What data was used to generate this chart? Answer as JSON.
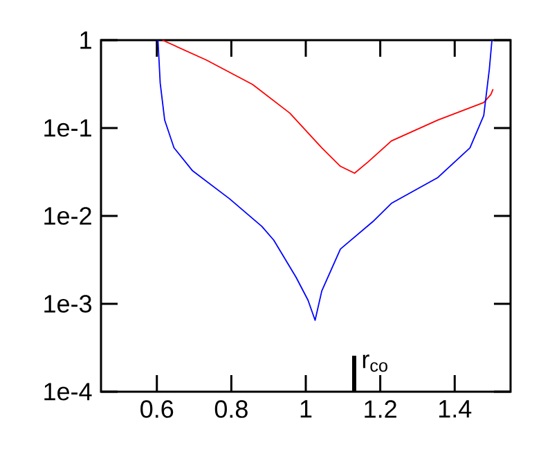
{
  "chart_data": {
    "type": "line",
    "log": "y",
    "xlim": [
      0.45,
      1.55
    ],
    "ylim": [
      0.0001,
      1
    ],
    "xticks": [
      0.6,
      0.8,
      1,
      1.2,
      1.4
    ],
    "yticks": [
      {
        "value": 0.0001,
        "label": "1e-4"
      },
      {
        "value": 0.001,
        "label": "1e-3"
      },
      {
        "value": 0.01,
        "label": "1e-2"
      },
      {
        "value": 0.1,
        "label": "1e-1"
      },
      {
        "value": 1,
        "label": "1"
      }
    ],
    "series": [
      {
        "color": "#ff0000",
        "x": [
          0.615,
          0.733,
          0.857,
          0.957,
          1.043,
          1.093,
          1.131,
          1.168,
          1.23,
          1.354,
          1.478,
          1.497,
          1.503
        ],
        "values": [
          1,
          0.594,
          0.313,
          0.148,
          0.0596,
          0.0367,
          0.0306,
          0.0414,
          0.0713,
          0.123,
          0.195,
          0.24,
          0.277
        ]
      },
      {
        "color": "#0000ff",
        "x": [
          0.603,
          0.609,
          0.621,
          0.646,
          0.696,
          0.795,
          0.882,
          0.914,
          0.974,
          1.006,
          1.025,
          1.043,
          1.093,
          1.18,
          1.23,
          1.354,
          1.441,
          1.478,
          1.493,
          1.5
        ],
        "values": [
          1,
          0.324,
          0.123,
          0.0596,
          0.0326,
          0.0157,
          0.0076,
          0.0053,
          0.002,
          0.0011,
          0.00065,
          0.0014,
          0.0042,
          0.0086,
          0.0139,
          0.0272,
          0.0596,
          0.139,
          0.466,
          1
        ]
      }
    ],
    "ref_lines": [
      {
        "axis": "x",
        "value": 1.13,
        "label": "r$_{co}$"
      }
    ]
  }
}
